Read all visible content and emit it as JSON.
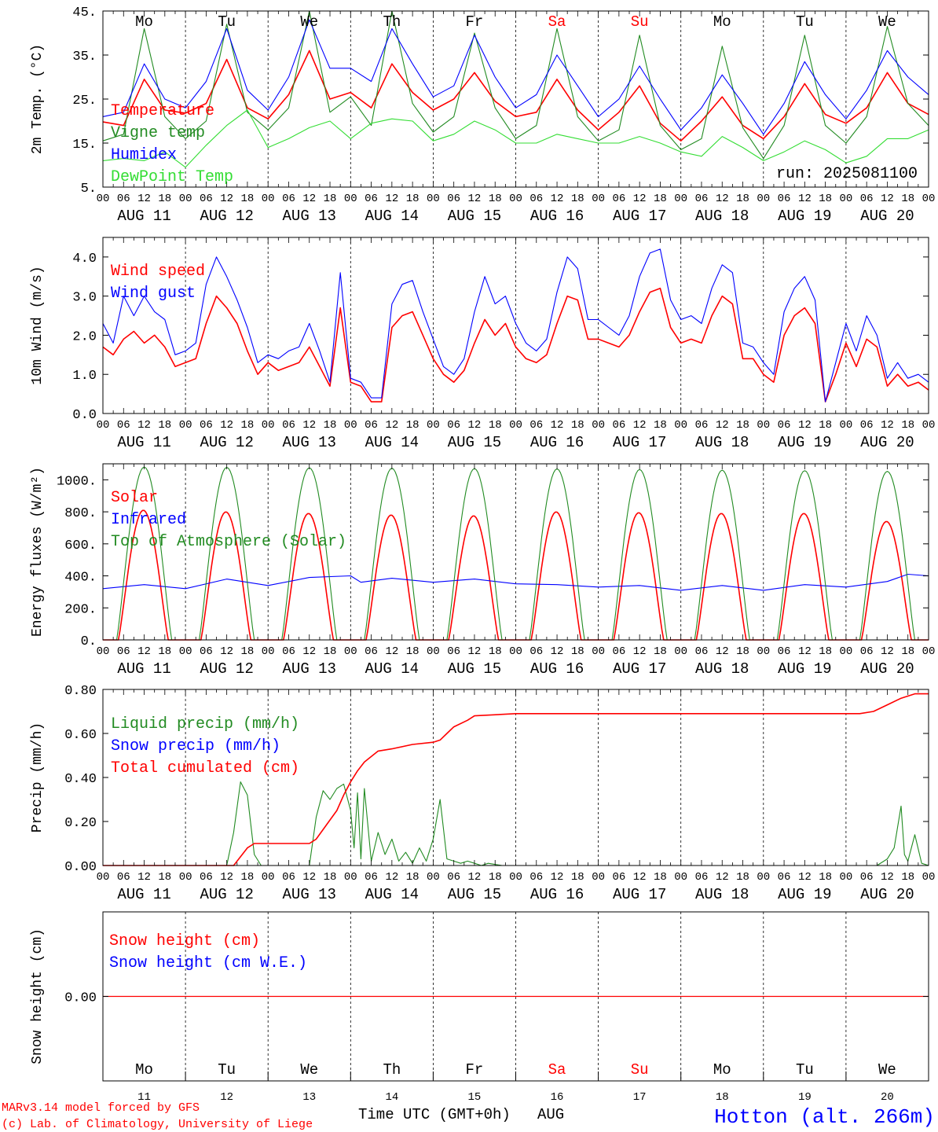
{
  "header": {
    "run_label": "run: 2025081100",
    "xaxis_title": "Time UTC (GMT+0h)",
    "month": "AUG",
    "credit_line1": "MARv3.14 model forced by GFS",
    "credit_line2": "(c) Lab. of Climatology, University of Liege",
    "station": "Hotton (alt. 266m)"
  },
  "colors": {
    "red": "#ff0000",
    "green": "#228b22",
    "blue": "#0000ff",
    "light_green": "#33dd33",
    "axis": "#000000"
  },
  "hour_ticks": [
    "00",
    "06",
    "12",
    "18"
  ],
  "days": [
    {
      "dow": "Mo",
      "date": "AUG 11",
      "num": "11",
      "weekend": false
    },
    {
      "dow": "Tu",
      "date": "AUG 12",
      "num": "12",
      "weekend": false
    },
    {
      "dow": "We",
      "date": "AUG 13",
      "num": "13",
      "weekend": false
    },
    {
      "dow": "Th",
      "date": "AUG 14",
      "num": "14",
      "weekend": false
    },
    {
      "dow": "Fr",
      "date": "AUG 15",
      "num": "15",
      "weekend": false
    },
    {
      "dow": "Sa",
      "date": "AUG 16",
      "num": "16",
      "weekend": true
    },
    {
      "dow": "Su",
      "date": "AUG 17",
      "num": "17",
      "weekend": true
    },
    {
      "dow": "Mo",
      "date": "AUG 18",
      "num": "18",
      "weekend": false
    },
    {
      "dow": "Tu",
      "date": "AUG 19",
      "num": "19",
      "weekend": false
    },
    {
      "dow": "We",
      "date": "AUG 20",
      "num": "20",
      "weekend": false
    }
  ],
  "chart_data": [
    {
      "type": "line",
      "ylabel": "2m Temp. (°C)",
      "ylim": [
        5,
        45
      ],
      "yticks": [
        "5.",
        "15.",
        "25.",
        "35.",
        "45."
      ],
      "grid": "dashed vertical lines at 00 UTC",
      "x_unit": "hours since AUG 11 00 UTC",
      "series": [
        {
          "name": "Temperature",
          "color": "#ff0000",
          "x": [
            0,
            6,
            12,
            18,
            24,
            30,
            36,
            42,
            48,
            54,
            60,
            66,
            72,
            78,
            84,
            90,
            96,
            102,
            108,
            114,
            120,
            126,
            132,
            138,
            144,
            150,
            156,
            162,
            168,
            174,
            180,
            186,
            192,
            198,
            204,
            210,
            216,
            222,
            228,
            234,
            240
          ],
          "values": [
            19.8,
            19,
            29.5,
            22.5,
            21.8,
            24,
            34,
            23,
            20.5,
            26,
            36,
            25,
            26.5,
            23,
            33,
            26.5,
            22.5,
            25,
            31,
            24.5,
            21,
            22,
            29.5,
            22.5,
            18,
            22,
            28,
            19.5,
            15.5,
            20,
            25.5,
            19,
            16,
            21,
            28.5,
            21.5,
            19.5,
            23,
            31,
            24,
            21.5
          ]
        },
        {
          "name": "Vigne temp",
          "color": "#228b22",
          "x": [
            0,
            6,
            12,
            18,
            24,
            30,
            36,
            42,
            48,
            54,
            60,
            66,
            72,
            78,
            84,
            90,
            96,
            102,
            108,
            114,
            120,
            126,
            132,
            138,
            144,
            150,
            156,
            162,
            168,
            174,
            180,
            186,
            192,
            198,
            204,
            210,
            216,
            222,
            228,
            234,
            240
          ],
          "values": [
            15.5,
            17,
            41,
            21,
            16,
            20,
            42,
            22,
            18,
            23,
            45,
            22,
            25.5,
            19,
            45,
            24,
            17.5,
            21,
            40,
            23,
            16,
            19,
            41,
            21,
            15.5,
            18,
            39.5,
            19,
            13.5,
            16,
            37,
            18.5,
            11.5,
            19,
            39.5,
            19,
            15,
            21,
            41.5,
            24,
            19
          ]
        },
        {
          "name": "Humidex",
          "color": "#0000ff",
          "x": [
            0,
            6,
            12,
            18,
            24,
            30,
            36,
            42,
            48,
            54,
            60,
            66,
            72,
            78,
            84,
            90,
            96,
            102,
            108,
            114,
            120,
            126,
            132,
            138,
            144,
            150,
            156,
            162,
            168,
            174,
            180,
            186,
            192,
            198,
            204,
            210,
            216,
            222,
            228,
            234,
            240
          ],
          "values": [
            21,
            22,
            33,
            25,
            23,
            29,
            41,
            27,
            22.5,
            30,
            43,
            32,
            32,
            29,
            41,
            33,
            25.5,
            28,
            39.5,
            30,
            23,
            26,
            35,
            28,
            21,
            25,
            32.5,
            25,
            18,
            23,
            30.5,
            24,
            17,
            24,
            33.5,
            26,
            20.5,
            27,
            36,
            30,
            26
          ]
        },
        {
          "name": "DewPoint Temp",
          "color": "#33dd33",
          "x": [
            0,
            6,
            12,
            18,
            24,
            30,
            36,
            42,
            48,
            54,
            60,
            66,
            72,
            78,
            84,
            90,
            96,
            102,
            108,
            114,
            120,
            126,
            132,
            138,
            144,
            150,
            156,
            162,
            168,
            174,
            180,
            186,
            192,
            198,
            204,
            210,
            216,
            222,
            228,
            234,
            240
          ],
          "values": [
            11,
            11.5,
            11,
            13,
            9.5,
            14.5,
            19,
            22.5,
            14,
            16,
            18.5,
            20,
            16,
            19.5,
            20.5,
            20,
            15.5,
            17,
            20,
            18,
            15,
            15,
            17,
            16,
            15,
            15,
            16.5,
            15,
            13,
            12,
            16.5,
            14,
            11,
            13,
            15.5,
            13.5,
            10.5,
            12,
            16,
            16,
            18
          ]
        }
      ]
    },
    {
      "type": "line",
      "ylabel": "10m Wind (m/s)",
      "ylim": [
        0,
        4.5
      ],
      "yticks": [
        "0.0",
        "1.0",
        "2.0",
        "3.0",
        "4.0"
      ],
      "series": [
        {
          "name": "Wind speed",
          "color": "#ff0000",
          "x": [
            0,
            3,
            6,
            9,
            12,
            15,
            18,
            21,
            24,
            27,
            30,
            33,
            36,
            39,
            42,
            45,
            48,
            51,
            54,
            57,
            60,
            63,
            66,
            69,
            72,
            75,
            78,
            81,
            84,
            87,
            90,
            93,
            96,
            99,
            102,
            105,
            108,
            111,
            114,
            117,
            120,
            123,
            126,
            129,
            132,
            135,
            138,
            141,
            144,
            147,
            150,
            153,
            156,
            159,
            162,
            165,
            168,
            171,
            174,
            177,
            180,
            183,
            186,
            189,
            192,
            195,
            198,
            201,
            204,
            207,
            210,
            213,
            216,
            219,
            222,
            225,
            228,
            231,
            234,
            237,
            240
          ],
          "values": [
            1.7,
            1.5,
            1.9,
            2.1,
            1.8,
            2.0,
            1.7,
            1.2,
            1.3,
            1.4,
            2.3,
            3.0,
            2.7,
            2.3,
            1.6,
            1.0,
            1.3,
            1.1,
            1.2,
            1.3,
            1.7,
            1.2,
            0.7,
            2.7,
            0.8,
            0.7,
            0.3,
            0.3,
            2.2,
            2.5,
            2.6,
            2.0,
            1.4,
            1.0,
            0.8,
            1.1,
            1.8,
            2.4,
            2.0,
            2.3,
            1.7,
            1.4,
            1.3,
            1.5,
            2.3,
            3.0,
            2.9,
            1.9,
            1.9,
            1.8,
            1.7,
            2.0,
            2.6,
            3.1,
            3.2,
            2.2,
            1.8,
            1.9,
            1.8,
            2.5,
            3.0,
            2.8,
            1.4,
            1.4,
            1.0,
            0.8,
            2.0,
            2.5,
            2.7,
            2.3,
            0.3,
            1.0,
            1.8,
            1.2,
            1.9,
            1.7,
            0.7,
            1.0,
            0.7,
            0.8,
            0.6
          ]
        },
        {
          "name": "Wind gust",
          "color": "#0000ff",
          "x": [
            0,
            3,
            6,
            9,
            12,
            15,
            18,
            21,
            24,
            27,
            30,
            33,
            36,
            39,
            42,
            45,
            48,
            51,
            54,
            57,
            60,
            63,
            66,
            69,
            72,
            75,
            78,
            81,
            84,
            87,
            90,
            93,
            96,
            99,
            102,
            105,
            108,
            111,
            114,
            117,
            120,
            123,
            126,
            129,
            132,
            135,
            138,
            141,
            144,
            147,
            150,
            153,
            156,
            159,
            162,
            165,
            168,
            171,
            174,
            177,
            180,
            183,
            186,
            189,
            192,
            195,
            198,
            201,
            204,
            207,
            210,
            213,
            216,
            219,
            222,
            225,
            228,
            231,
            234,
            237,
            240
          ],
          "values": [
            2.3,
            1.8,
            3.0,
            2.5,
            3.0,
            2.6,
            2.4,
            1.5,
            1.6,
            1.8,
            3.3,
            4.0,
            3.5,
            2.9,
            2.2,
            1.3,
            1.5,
            1.4,
            1.6,
            1.7,
            2.3,
            1.6,
            0.8,
            3.6,
            0.9,
            0.8,
            0.4,
            0.4,
            2.8,
            3.3,
            3.4,
            2.6,
            1.9,
            1.2,
            1.0,
            1.4,
            2.6,
            3.5,
            2.8,
            3.0,
            2.3,
            1.8,
            1.6,
            1.9,
            3.1,
            4.0,
            3.7,
            2.4,
            2.4,
            2.2,
            2.0,
            2.5,
            3.5,
            4.1,
            4.2,
            2.9,
            2.4,
            2.5,
            2.3,
            3.2,
            3.8,
            3.6,
            1.8,
            1.7,
            1.3,
            1.0,
            2.6,
            3.2,
            3.5,
            2.9,
            0.3,
            1.3,
            2.3,
            1.6,
            2.5,
            2.0,
            0.9,
            1.3,
            0.9,
            1.0,
            0.8
          ]
        }
      ]
    },
    {
      "type": "line",
      "ylabel": "Energy fluxes (W/m²)",
      "ylim": [
        0,
        1100
      ],
      "yticks": [
        "0.",
        "200.",
        "400.",
        "600.",
        "800.",
        "1000."
      ],
      "series": [
        {
          "name": "Solar",
          "color": "#ff0000",
          "daily_peak": [
            810,
            800,
            790,
            780,
            775,
            800,
            795,
            790,
            790,
            740
          ],
          "daylight_hours": [
            4.5,
            19
          ]
        },
        {
          "name": "Infrared",
          "color": "#0000ff",
          "x": [
            0,
            12,
            24,
            36,
            48,
            60,
            72,
            75,
            84,
            96,
            108,
            120,
            132,
            144,
            156,
            168,
            180,
            192,
            204,
            216,
            228,
            234,
            240
          ],
          "values": [
            320,
            345,
            320,
            380,
            340,
            390,
            400,
            360,
            385,
            360,
            380,
            350,
            345,
            330,
            340,
            310,
            340,
            310,
            345,
            330,
            365,
            410,
            400
          ]
        },
        {
          "name": "Top of Atmosphere (Solar)",
          "color": "#228b22",
          "daily_peak": [
            1080,
            1078,
            1075,
            1072,
            1070,
            1068,
            1064,
            1060,
            1057,
            1053
          ],
          "daylight_hours": [
            4,
            20
          ]
        }
      ]
    },
    {
      "type": "line",
      "ylabel": "Precip (mm/h)",
      "ylim": [
        0,
        0.8
      ],
      "yticks": [
        "0.00",
        "0.20",
        "0.40",
        "0.60",
        "0.80"
      ],
      "series": [
        {
          "name": "Liquid precip (mm/h)",
          "color": "#228b22",
          "x": [
            0,
            36,
            38,
            40,
            42,
            44,
            46,
            60,
            62,
            64,
            66,
            68,
            70,
            72,
            73,
            74,
            75,
            76,
            78,
            80,
            82,
            84,
            86,
            88,
            90,
            92,
            94,
            96,
            98,
            100,
            102,
            104,
            106,
            108,
            110,
            112,
            116,
            120,
            225,
            228,
            230,
            232,
            233,
            234,
            236,
            238,
            240
          ],
          "values": [
            0,
            0,
            0.15,
            0.38,
            0.32,
            0.05,
            0,
            0,
            0.22,
            0.34,
            0.3,
            0.35,
            0.37,
            0.25,
            0.08,
            0.33,
            0.03,
            0.35,
            0.02,
            0.15,
            0.05,
            0.12,
            0.02,
            0.06,
            0.01,
            0.08,
            0.02,
            0.12,
            0.3,
            0.03,
            0.02,
            0.01,
            0.02,
            0.01,
            0,
            0.01,
            0,
            0,
            0,
            0.03,
            0.08,
            0.27,
            0.05,
            0.02,
            0.14,
            0.01,
            0
          ]
        },
        {
          "name": "Snow precip (mm/h)",
          "color": "#0000ff",
          "x": [
            0,
            240
          ],
          "values": [
            0,
            0
          ]
        },
        {
          "name": "Total cumulated (cm)",
          "color": "#ff0000",
          "x": [
            0,
            38,
            42,
            44,
            60,
            62,
            68,
            70,
            72,
            74,
            76,
            80,
            84,
            90,
            96,
            98,
            100,
            102,
            106,
            108,
            120,
            150,
            180,
            216,
            220,
            224,
            228,
            232,
            236,
            240
          ],
          "values": [
            0,
            0,
            0.08,
            0.1,
            0.1,
            0.12,
            0.25,
            0.32,
            0.38,
            0.43,
            0.47,
            0.52,
            0.53,
            0.55,
            0.56,
            0.57,
            0.6,
            0.63,
            0.66,
            0.68,
            0.69,
            0.69,
            0.69,
            0.69,
            0.69,
            0.7,
            0.73,
            0.76,
            0.78,
            0.78
          ]
        }
      ]
    },
    {
      "type": "line",
      "ylabel": "Snow height (cm)",
      "yticks": [
        "0.00"
      ],
      "series": [
        {
          "name": "Snow height (cm)",
          "color": "#ff0000",
          "x": [
            0,
            240
          ],
          "values": [
            0,
            0
          ]
        },
        {
          "name": "Snow height (cm W.E.)",
          "color": "#0000ff",
          "x": [
            0,
            240
          ],
          "values": [
            0,
            0
          ]
        }
      ]
    }
  ]
}
